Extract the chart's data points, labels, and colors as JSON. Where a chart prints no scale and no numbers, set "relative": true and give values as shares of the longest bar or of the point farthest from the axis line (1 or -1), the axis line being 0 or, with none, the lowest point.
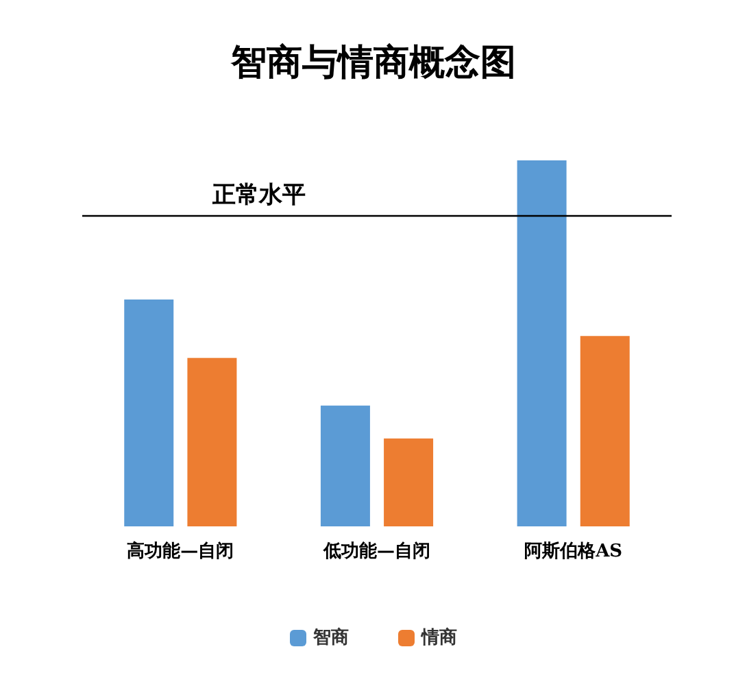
{
  "chart_data": {
    "type": "bar",
    "title": "智商与情商概念图",
    "categories": [
      "高功能—自闭",
      "低功能—自闭",
      "阿斯伯格AS"
    ],
    "series": [
      {
        "name": "智商",
        "color": "#5b9bd5",
        "values": [
          0.62,
          0.33,
          1
        ]
      },
      {
        "name": "情商",
        "color": "#ed7d31",
        "values": [
          0.46,
          0.24,
          0.52
        ]
      }
    ],
    "relative": true,
    "ref_lines": [
      {
        "axis": "y",
        "value": 0.85,
        "label": "正常水平",
        "color": "#000000"
      }
    ],
    "grid": false,
    "legend": "bottom"
  }
}
